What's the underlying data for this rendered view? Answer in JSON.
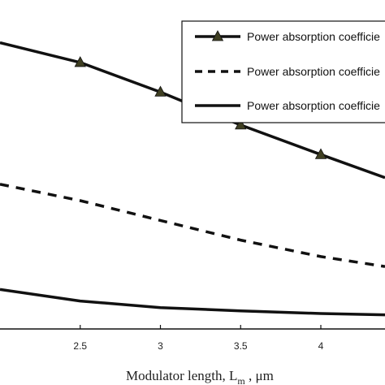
{
  "chart_data": {
    "type": "line",
    "xlabel_main": "Modulator length, L",
    "xlabel_sub": "m",
    "xlabel_unit": " , μm",
    "x_ticks": [
      "2.5",
      "3",
      "3.5",
      "4"
    ],
    "xlim": [
      2.0,
      4.4
    ],
    "ylim": [
      0,
      1
    ],
    "series": [
      {
        "name": "Power absorption coefficient",
        "style": "solid-triangle",
        "color": "#111111",
        "marker_color": "#3f3f22",
        "x": [
          2.0,
          2.5,
          3.0,
          3.5,
          4.0,
          4.4
        ],
        "y": [
          0.87,
          0.81,
          0.72,
          0.62,
          0.53,
          0.46
        ]
      },
      {
        "name": "Power absorption coefficient",
        "style": "dashed",
        "color": "#111111",
        "x": [
          2.0,
          2.5,
          3.0,
          3.5,
          4.0,
          4.4
        ],
        "y": [
          0.44,
          0.39,
          0.33,
          0.27,
          0.22,
          0.19
        ]
      },
      {
        "name": "Power absorption coefficient",
        "style": "solid",
        "color": "#111111",
        "x": [
          2.0,
          2.5,
          3.0,
          3.5,
          4.0,
          4.4
        ],
        "y": [
          0.12,
          0.085,
          0.065,
          0.055,
          0.047,
          0.043
        ]
      }
    ],
    "legend": {
      "placement": "top-right",
      "entries": [
        "Power absorption coefficie",
        "Power absorption coefficie",
        "Power absorption coefficie"
      ]
    },
    "grid": false
  }
}
